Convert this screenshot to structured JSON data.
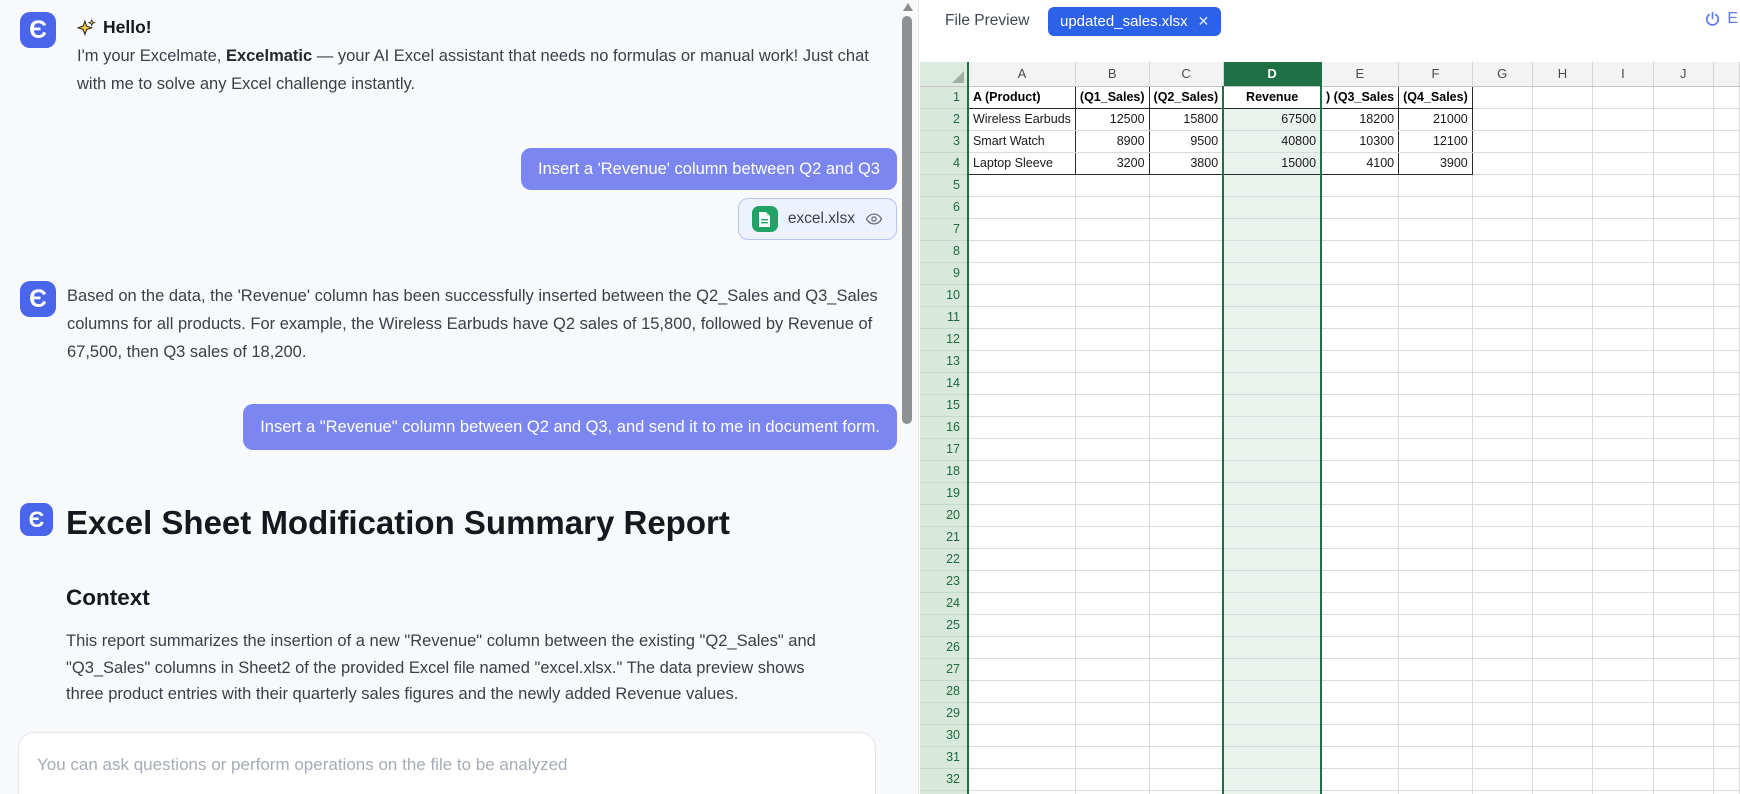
{
  "colors": {
    "accent": "#7b86f0",
    "avatar_blue": "#4965e9",
    "tab_blue": "#2c62e8",
    "power_blue": "#5d78ea",
    "excel_green": "#21a366",
    "selection_green": "#1f7145"
  },
  "chat": {
    "assistant_avatar": "Є",
    "greeting": {
      "icon": "sparkles-icon",
      "title": "Hello!"
    },
    "intro": {
      "prefix": "I'm your Excelmate, ",
      "bold": "Excelmatic",
      "suffix": " — your AI Excel assistant that needs no formulas or manual work! Just chat with me to solve any Excel challenge instantly."
    },
    "user_message_1": "Insert a 'Revenue' column between Q2 and Q3",
    "attachment": {
      "filename": "excel.xlsx",
      "icon": "excel-file-icon",
      "action_icon": "eye-icon"
    },
    "assistant_message_1": "Based on the data, the 'Revenue' column has been successfully inserted between the Q2_Sales and Q3_Sales columns for all products. For example, the Wireless Earbuds have Q2 sales of 15,800, followed by Revenue of 67,500, then Q3 sales of 18,200.",
    "user_message_2": "Insert a \"Revenue\" column between Q2 and Q3, and send it to me in document form.",
    "report": {
      "title": "Excel Sheet Modification Summary Report",
      "section_heading": "Context",
      "body": "This report summarizes the insertion of a new \"Revenue\" column between the existing \"Q2_Sales\" and \"Q3_Sales\" columns in Sheet2 of the provided Excel file named \"excel.xlsx.\" The data preview shows three product entries with their quarterly sales figures and the newly added Revenue values."
    },
    "input_placeholder": "You can ask questions or perform operations on the file to be analyzed"
  },
  "preview": {
    "label": "File Preview",
    "tab": {
      "name": "updated_sales.xlsx",
      "close_icon": "✕"
    },
    "exit": {
      "icon": "power-icon",
      "label": "E"
    },
    "spreadsheet": {
      "columns": [
        "A",
        "B",
        "C",
        "D",
        "E",
        "F",
        "G",
        "H",
        "I",
        "J"
      ],
      "selected_column": "D",
      "visible_rows": 32,
      "header_row": [
        "A (Product)",
        "(Q1_Sales)",
        "(Q2_Sales)",
        "Revenue",
        ") (Q3_Sales",
        "(Q4_Sales)"
      ],
      "data_rows": [
        [
          "Wireless Earbuds",
          "12500",
          "15800",
          "67500",
          "18200",
          "21000"
        ],
        [
          "Smart Watch",
          "8900",
          "9500",
          "40800",
          "10300",
          "12100"
        ],
        [
          "Laptop Sleeve",
          "3200",
          "3800",
          "15000",
          "4100",
          "3900"
        ]
      ]
    }
  }
}
